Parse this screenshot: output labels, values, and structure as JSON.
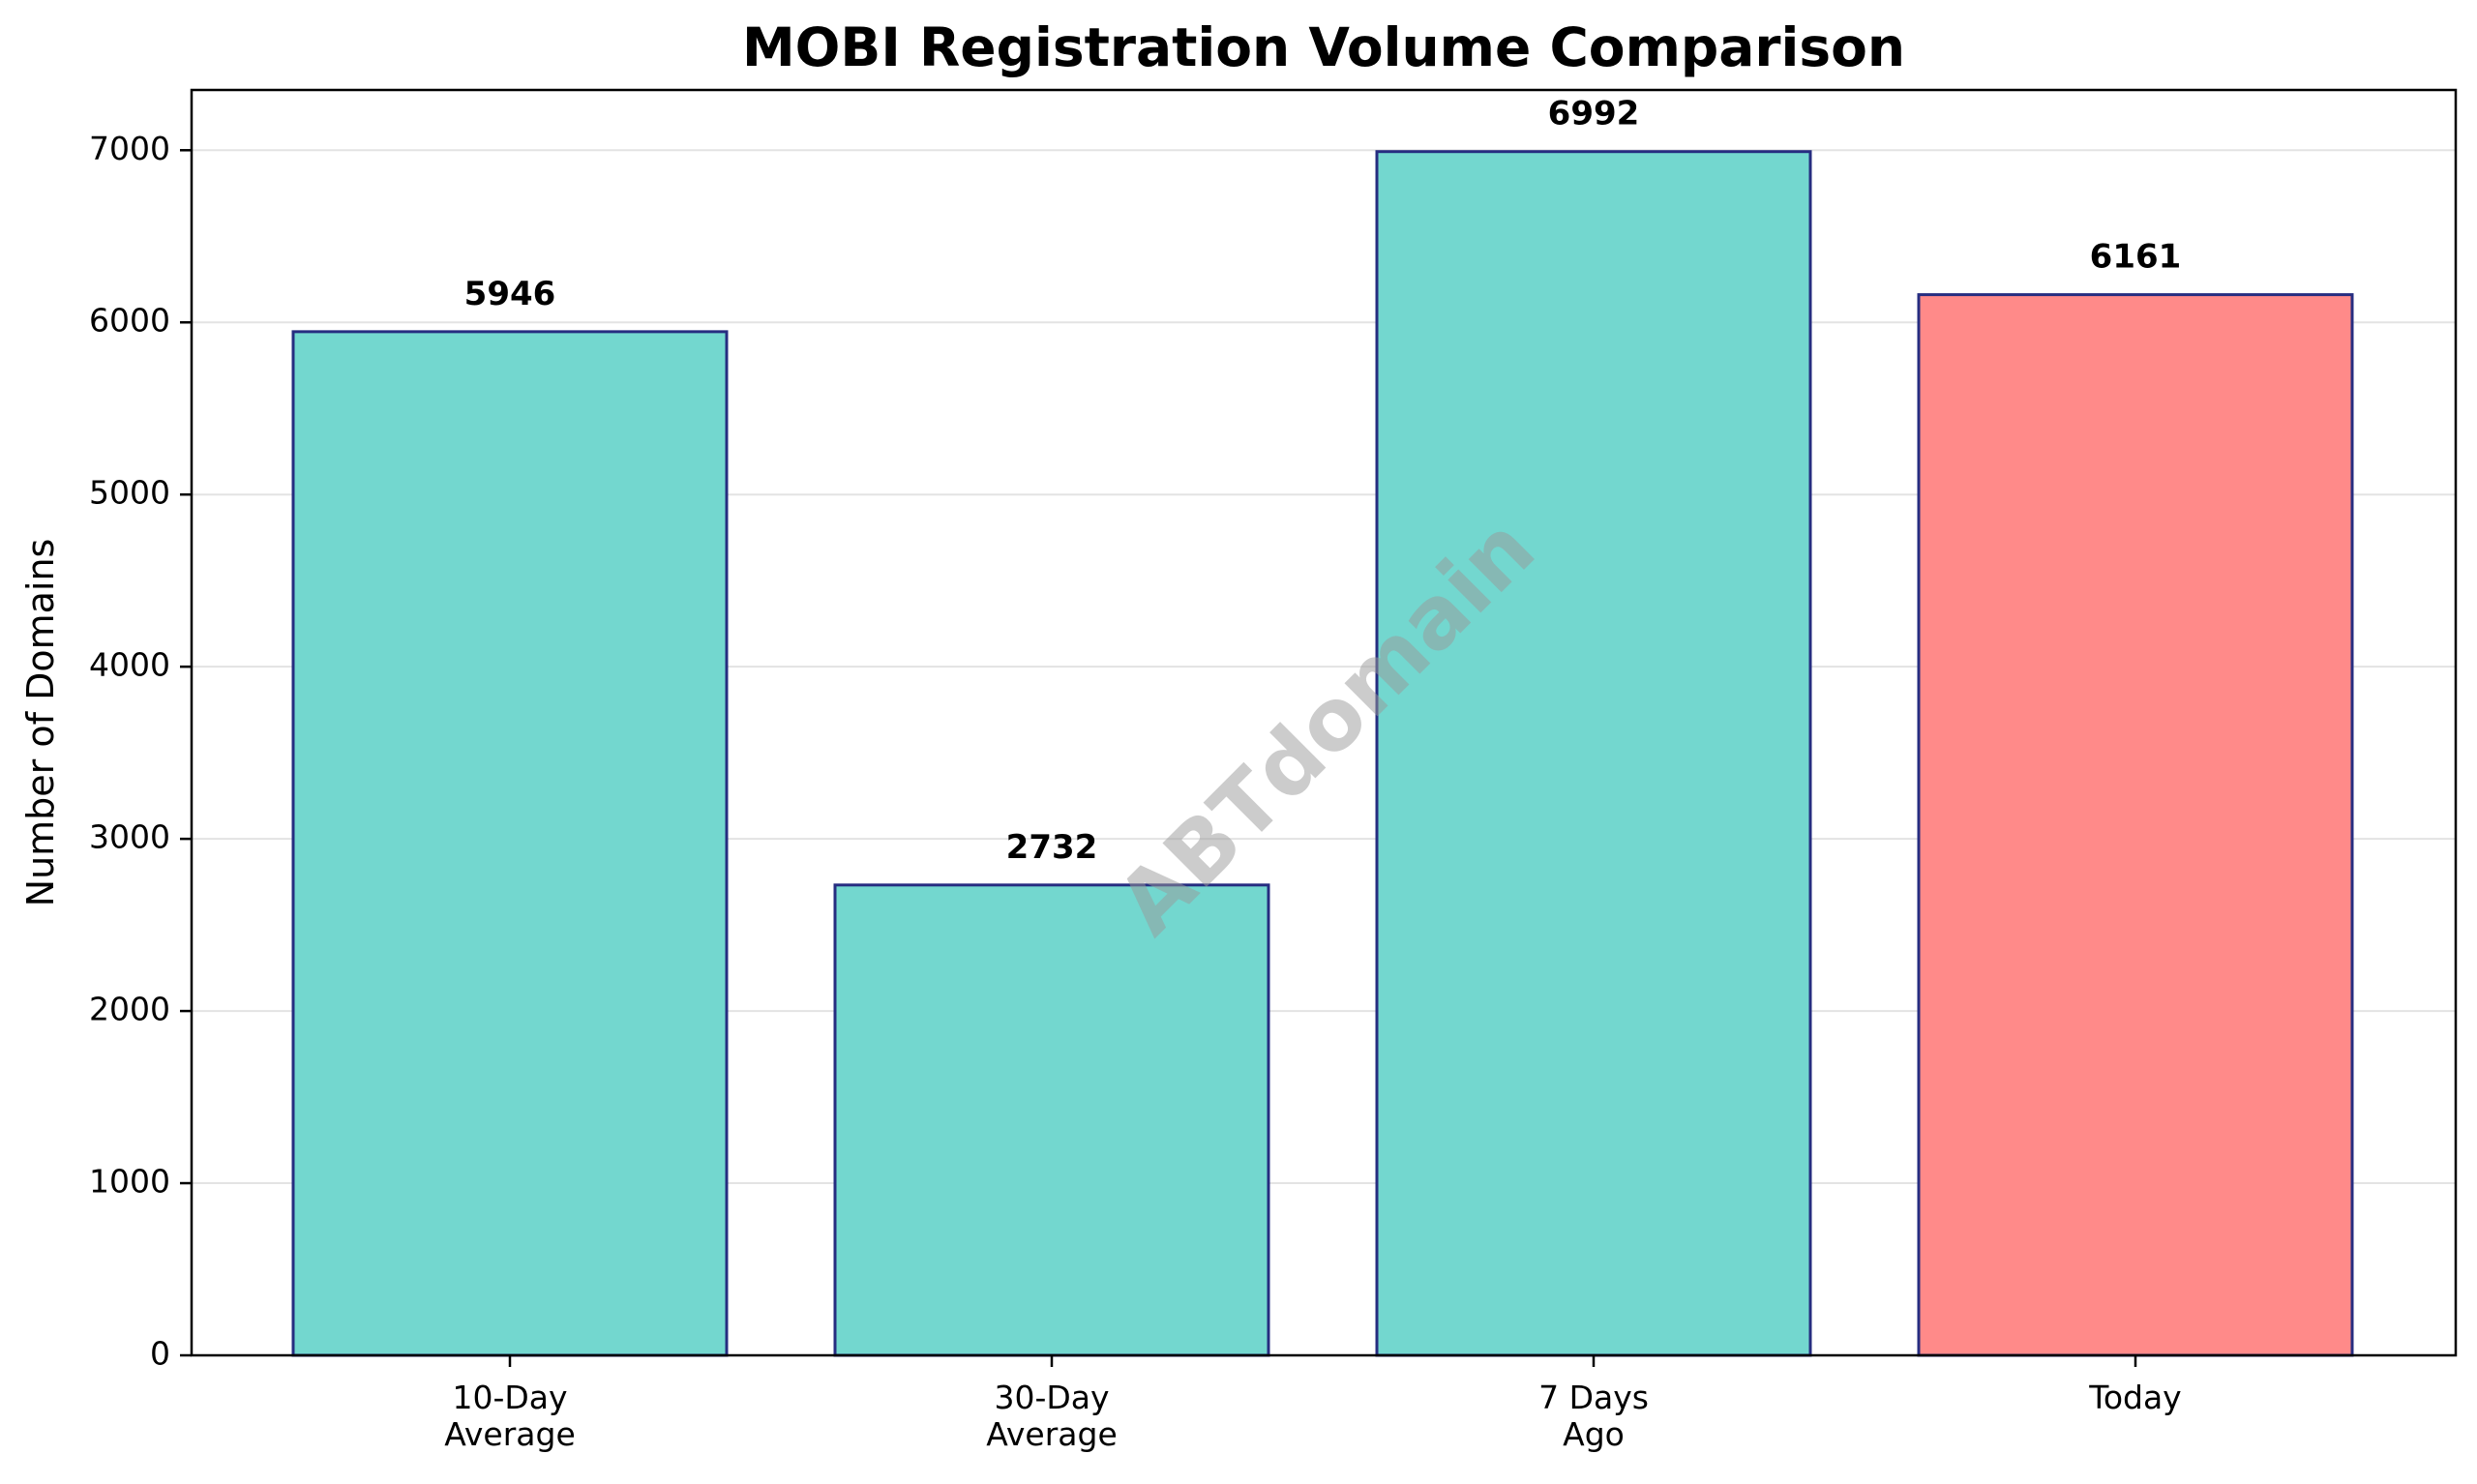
{
  "chart_data": {
    "type": "bar",
    "title": "MOBI Registration Volume Comparison",
    "xlabel": "",
    "ylabel": "Number of Domains",
    "categories": [
      [
        "10-Day",
        "Average"
      ],
      [
        "30-Day",
        "Average"
      ],
      [
        "7 Days",
        "Ago"
      ],
      [
        "Today"
      ]
    ],
    "values": [
      5946,
      2732,
      6992,
      6161
    ],
    "data_labels": [
      "5946",
      "2732",
      "6992",
      "6161"
    ],
    "bar_colors": [
      "#73d7cf",
      "#73d7cf",
      "#73d7cf",
      "#ff8a89"
    ],
    "bar_edge_color": "#262d80",
    "ylim": [
      0,
      7350
    ],
    "yticks": [
      0,
      1000,
      2000,
      3000,
      4000,
      5000,
      6000,
      7000
    ],
    "grid": "horizontal",
    "legend": "none",
    "watermark": "ABTdomain"
  }
}
